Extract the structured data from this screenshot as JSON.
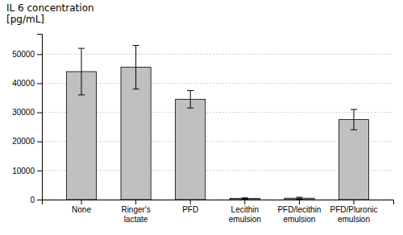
{
  "chart_data": {
    "type": "bar",
    "title": "IL 6 concentration\n[pg/mL]",
    "categories": [
      "None",
      "Ringer's\nlactate",
      "PFD",
      "Lecithin\nemulsion",
      "PFD/lecithin\nemulsion",
      "PFD/Pluronic\nemulsion"
    ],
    "values": [
      44000,
      45500,
      34500,
      400,
      500,
      27500
    ],
    "errors": [
      8000,
      7500,
      3000,
      200,
      300,
      3500
    ],
    "color": "#c0c0c0",
    "ylim": [
      0,
      57000
    ],
    "yticks": [
      0,
      10000,
      20000,
      30000,
      40000,
      50000
    ],
    "grid": true
  }
}
